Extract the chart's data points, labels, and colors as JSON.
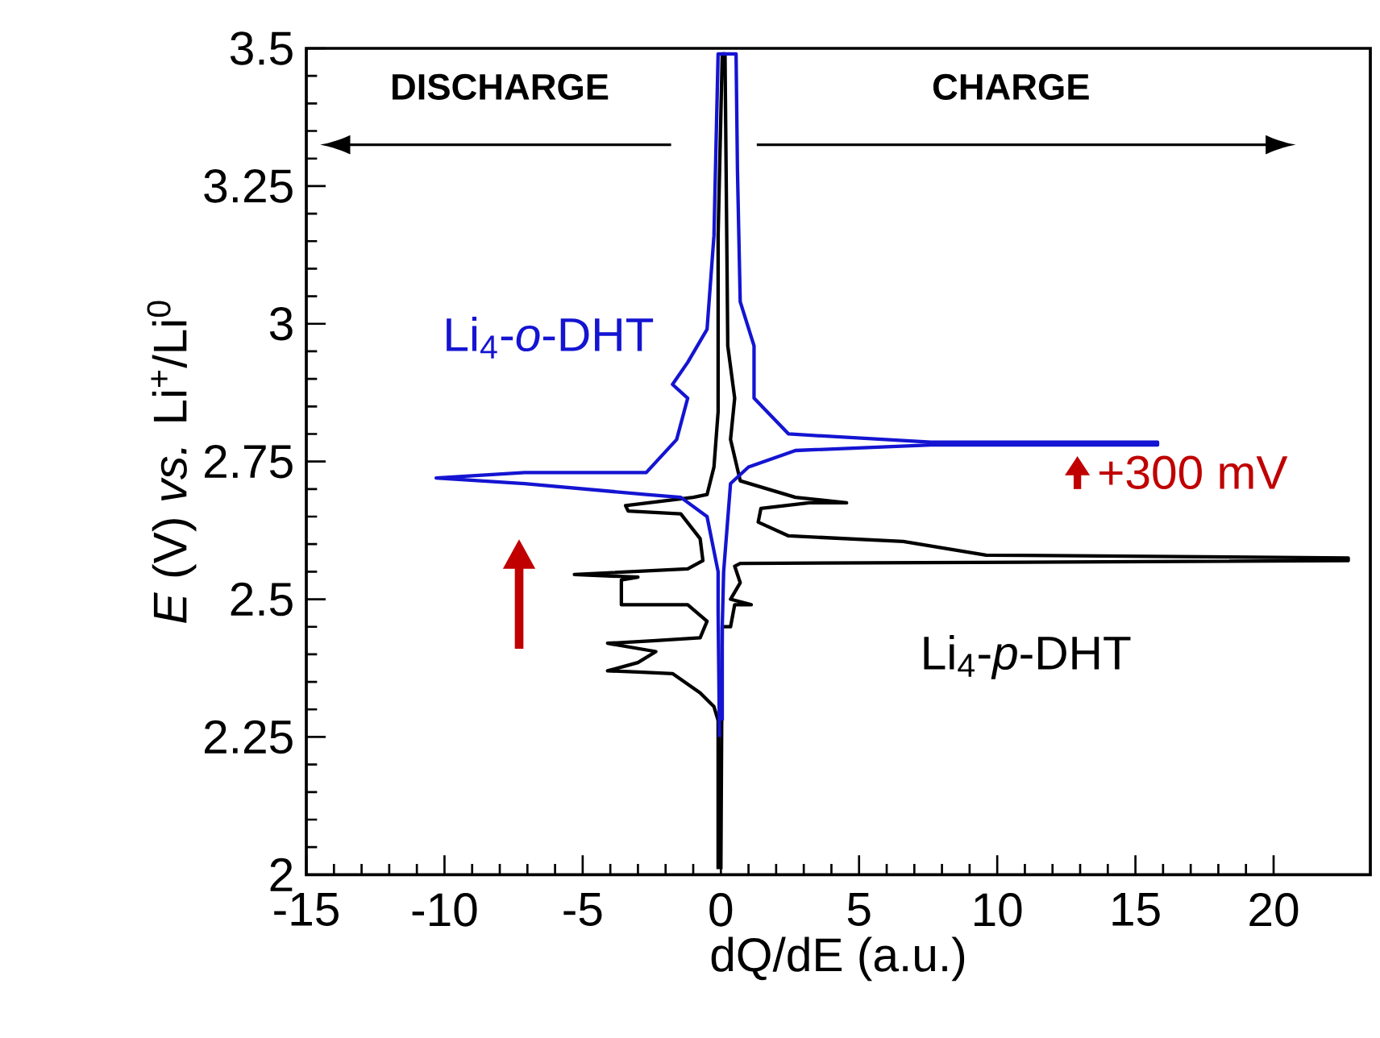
{
  "chart_data": {
    "type": "line",
    "xlabel": "dQ/dE (a.u.)",
    "ylabel": "*E* (V) *vs.* Li$^{+}$/Li$^{0}$",
    "xlim": [
      -15,
      23.5
    ],
    "ylim": [
      2,
      3.5
    ],
    "xticks": [
      -15,
      -10,
      -5,
      0,
      5,
      10,
      15,
      20
    ],
    "yticks": [
      2,
      2.25,
      2.5,
      2.75,
      3,
      3.25,
      3.5
    ],
    "legend": false,
    "grid": false,
    "marker": "none",
    "line_style": "solid",
    "annotations": [
      "DISCHARGE",
      "CHARGE",
      "+300 mV"
    ],
    "series": [
      {
        "name": "Li$_{4}$-*o*-DHT",
        "color": "#1414d2",
        "x": [
          0.05,
          0.05,
          0.1,
          0.35,
          1.0,
          2.7,
          7.6,
          15.8,
          15.8,
          7.6,
          2.45,
          1.2,
          1.2,
          0.7,
          0.6,
          0.55,
          -0.1,
          -0.25,
          -0.5,
          -1.2,
          -1.75,
          -1.2,
          -1.6,
          -2.7,
          -7.1,
          -10.3,
          -7.1,
          -2.7,
          -1.45,
          -0.5,
          -0.1,
          -0.1,
          -0.05
        ],
        "values": [
          2.28,
          2.45,
          2.55,
          2.71,
          2.74,
          2.77,
          2.78,
          2.78,
          2.785,
          2.785,
          2.8,
          2.865,
          2.96,
          3.04,
          3.28,
          3.49,
          3.49,
          3.16,
          2.99,
          2.93,
          2.89,
          2.865,
          2.79,
          2.73,
          2.73,
          2.72,
          2.71,
          2.69,
          2.685,
          2.65,
          2.55,
          2.48,
          2.25
        ]
      },
      {
        "name": "Li$_{4}$-*p*-DHT",
        "color": "#000000",
        "x": [
          0,
          0.05,
          0.35,
          0.5,
          1.1,
          0.35,
          0.7,
          0.5,
          0.7,
          22.7,
          22.7,
          9.6,
          6.6,
          2.45,
          1.35,
          1.45,
          3.2,
          4.55,
          2.7,
          0.7,
          0.35,
          0.5,
          0.25,
          0.15,
          0.05,
          -0.1,
          -0.1,
          -0.25,
          -0.5,
          -1.0,
          -3.45,
          -3.35,
          -1.45,
          -0.75,
          -0.65,
          -1.2,
          -5.3,
          -3.0,
          -3.6,
          -3.6,
          -1.2,
          -0.5,
          -0.75,
          -2.35,
          -4.1,
          -2.35,
          -3.0,
          -4.1,
          -3.0,
          -1.75,
          -0.75,
          -0.25,
          -0.1,
          -0.1
        ],
        "values": [
          2.01,
          2.45,
          2.45,
          2.49,
          2.49,
          2.5,
          2.53,
          2.56,
          2.565,
          2.57,
          2.575,
          2.58,
          2.605,
          2.615,
          2.64,
          2.665,
          2.675,
          2.675,
          2.685,
          2.715,
          2.79,
          2.865,
          2.96,
          3.49,
          3.49,
          3.16,
          2.84,
          2.74,
          2.69,
          2.685,
          2.67,
          2.66,
          2.655,
          2.61,
          2.57,
          2.555,
          2.545,
          2.54,
          2.535,
          2.49,
          2.49,
          2.46,
          2.43,
          2.425,
          2.42,
          2.405,
          2.385,
          2.37,
          2.368,
          2.365,
          2.33,
          2.305,
          2.28,
          2.01
        ]
      }
    ]
  }
}
